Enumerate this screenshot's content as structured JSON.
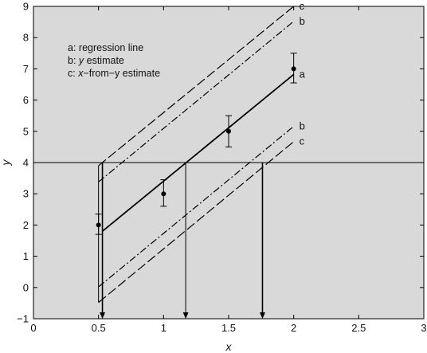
{
  "chart_data": {
    "type": "line",
    "title": "",
    "xlabel": "x",
    "ylabel": "y",
    "xlim": [
      0,
      3
    ],
    "ylim": [
      -1,
      9
    ],
    "x_ticks": [
      0,
      0.5,
      1,
      1.5,
      2,
      2.5,
      3
    ],
    "x_tick_labels": [
      "0",
      "0.5",
      "1",
      "1.5",
      "2",
      "2.5",
      "3"
    ],
    "y_ticks": [
      -1,
      0,
      1,
      2,
      3,
      4,
      5,
      6,
      7,
      8,
      9
    ],
    "y_tick_labels": [
      "−1",
      "0",
      "1",
      "2",
      "3",
      "4",
      "5",
      "6",
      "7",
      "8",
      "9"
    ],
    "grid": false,
    "background": "#d9d9d9",
    "legend": {
      "placement": "top-left",
      "entries": [
        {
          "prefix": "a",
          "label": "regression line"
        },
        {
          "prefix": "b",
          "label": "y estimate"
        },
        {
          "prefix": "c",
          "label": "x−from−y estimate"
        }
      ]
    },
    "points": {
      "x": [
        0.5,
        1.0,
        1.5,
        2.0
      ],
      "y": [
        2.0,
        3.0,
        5.0,
        7.0
      ],
      "err_low": [
        1.7,
        2.6,
        4.5,
        6.55
      ],
      "err_high": [
        2.35,
        3.45,
        5.5,
        7.5
      ]
    },
    "series": [
      {
        "name": "a",
        "style": "solid",
        "x": [
          0.53,
          2.0
        ],
        "y": [
          1.8,
          6.82
        ]
      },
      {
        "name": "b",
        "style": "dash-dot",
        "x": [
          0.5,
          2.0
        ],
        "y": [
          3.38,
          8.52
        ]
      },
      {
        "name": "c",
        "style": "long-dash",
        "x": [
          0.5,
          2.0
        ],
        "y": [
          3.9,
          9.0
        ]
      },
      {
        "name": "b",
        "style": "dash-dot",
        "x": [
          0.5,
          2.0
        ],
        "y": [
          0.02,
          5.16
        ]
      },
      {
        "name": "c",
        "style": "long-dash",
        "x": [
          0.5,
          2.0
        ],
        "y": [
          -0.48,
          4.67
        ]
      }
    ],
    "reference_line": {
      "y": 4
    },
    "drop_arrows": [
      {
        "x": 0.53,
        "from_y": 4,
        "to_y": -1
      },
      {
        "x": 1.17,
        "from_y": 4,
        "to_y": -1
      },
      {
        "x": 1.76,
        "from_y": 4,
        "to_y": -1
      }
    ],
    "bracket": {
      "x": 0.5,
      "y_low": -0.48,
      "y_high": 3.9
    }
  }
}
